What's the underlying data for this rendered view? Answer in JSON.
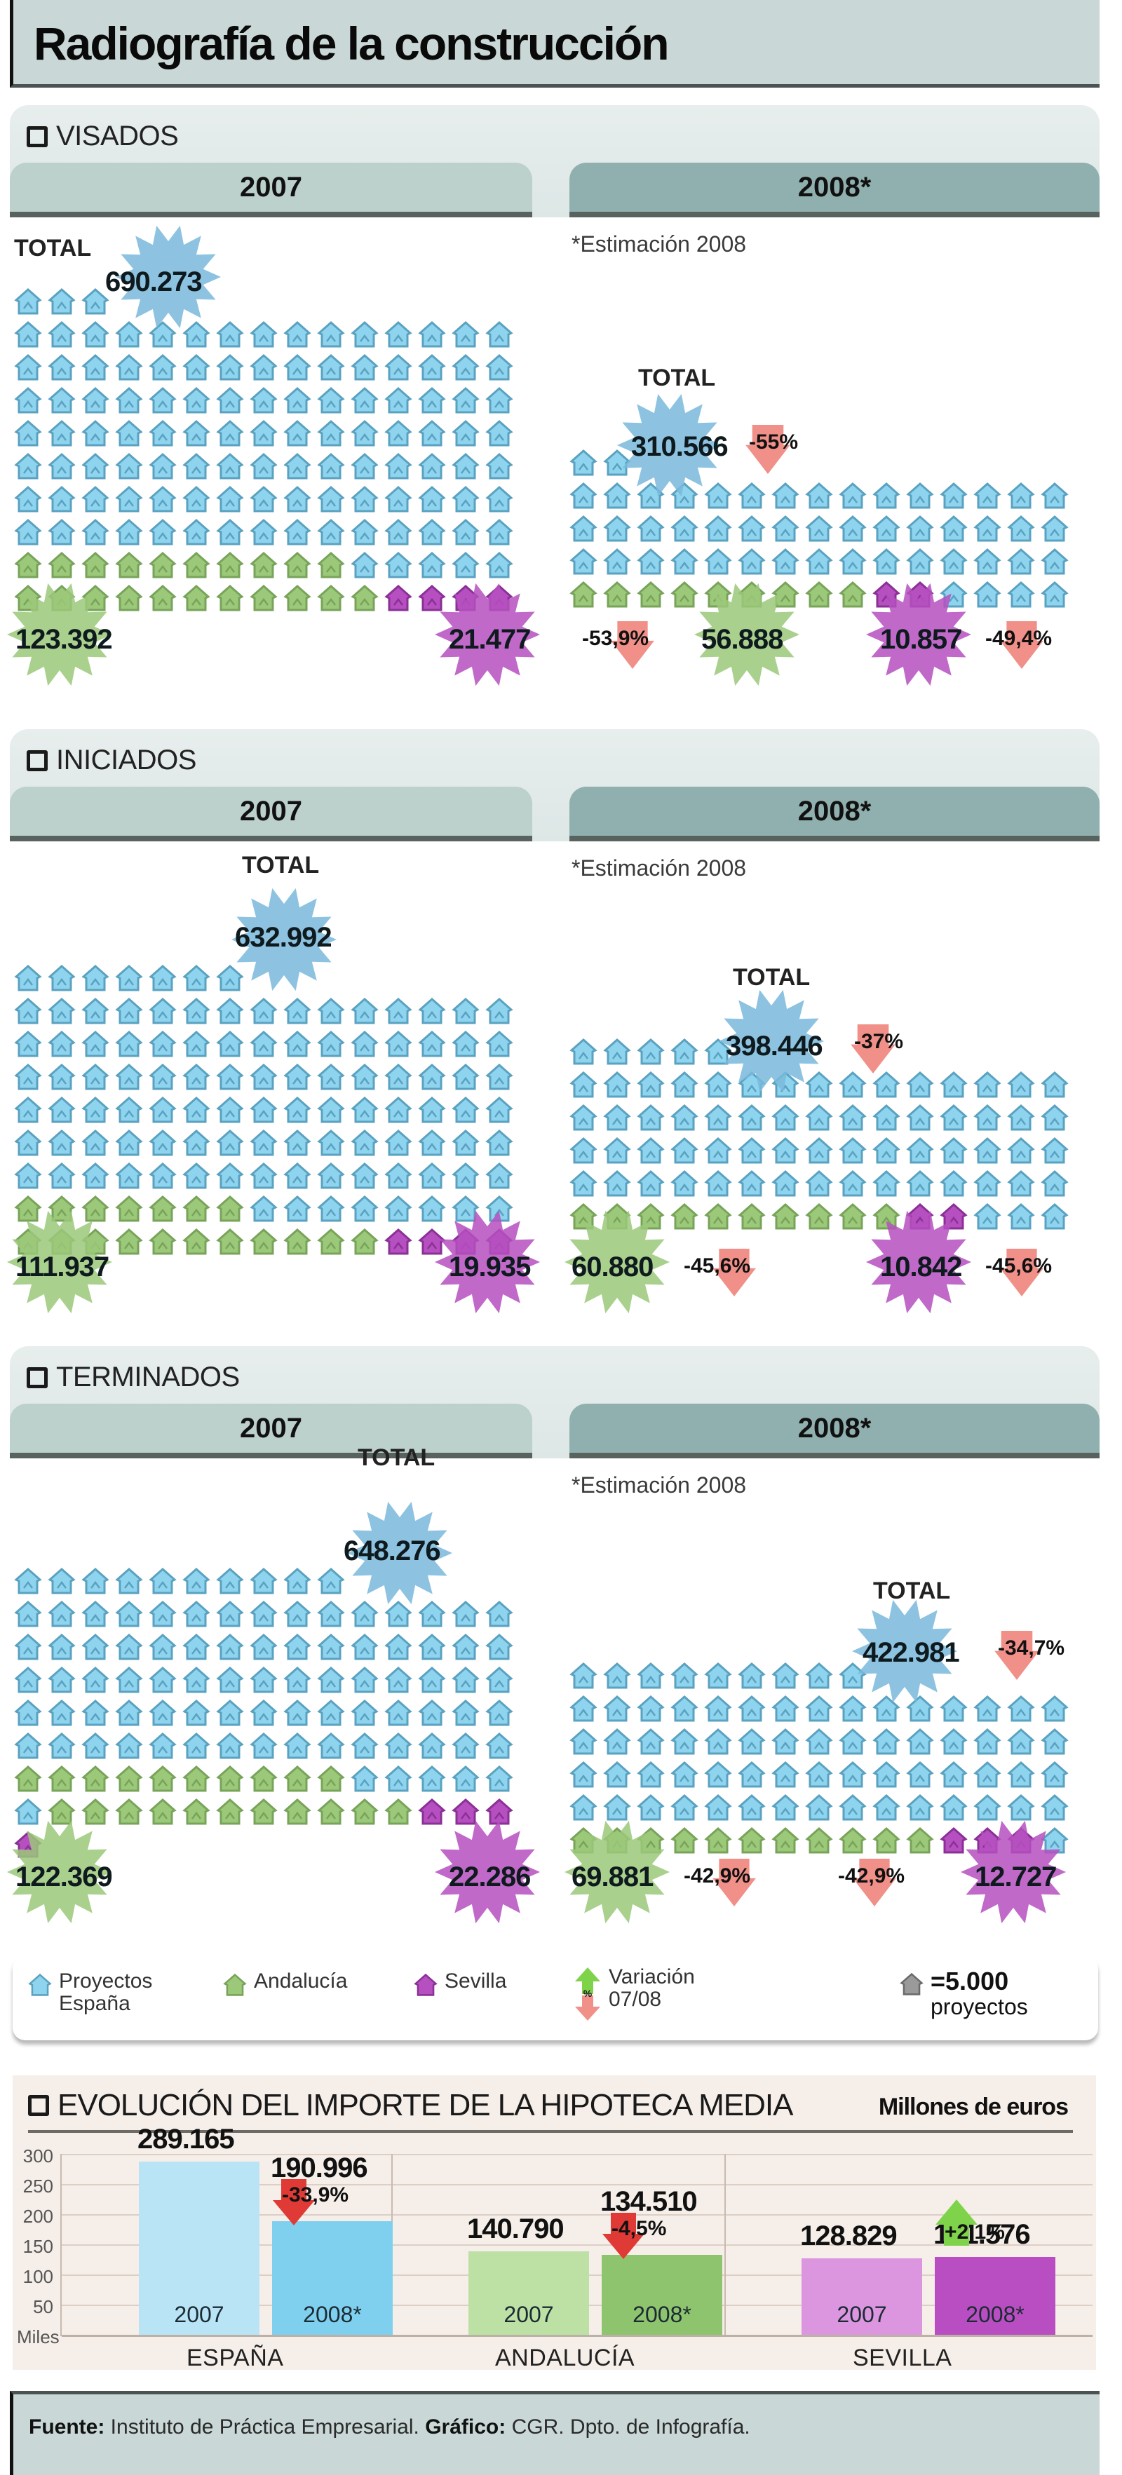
{
  "title": "Radiografía de la construcción",
  "years": {
    "y2007": "2007",
    "y2008": "2008*"
  },
  "estimation_note": "*Estimación 2008",
  "total_label": "TOTAL",
  "unit_note": "=5.000 proyectos",
  "colors": {
    "espana": "#8fd4ef",
    "andalucia": "#9cc87a",
    "sevilla": "#b650c0",
    "variation_down": "#f09088",
    "variation_up": "#7fd34a",
    "header_bg": "#c9d8d6",
    "tab_2007": "#bcd0cc",
    "tab_2008": "#8fb0ae"
  },
  "sections": [
    {
      "id": "visados",
      "label": "VISADOS",
      "y2007": {
        "total": "690.273",
        "andalucia": "123.392",
        "sevilla": "21.477"
      },
      "y2008": {
        "total": "310.566",
        "total_var": "-55%",
        "andalucia": "56.888",
        "andalucia_var": "-53,9%",
        "sevilla": "10.857",
        "sevilla_var": "-49,4%"
      }
    },
    {
      "id": "iniciados",
      "label": "INICIADOS",
      "y2007": {
        "total": "632.992",
        "andalucia": "111.937",
        "sevilla": "19.935"
      },
      "y2008": {
        "total": "398.446",
        "total_var": "-37%",
        "andalucia": "60.880",
        "andalucia_var": "-45,6%",
        "sevilla": "10.842",
        "sevilla_var": "-45,6%"
      }
    },
    {
      "id": "terminados",
      "label": "TERMINADOS",
      "y2007": {
        "total": "648.276",
        "andalucia": "122.369",
        "sevilla": "22.286"
      },
      "y2008": {
        "total": "422.981",
        "total_var": "-34,7%",
        "andalucia": "69.881",
        "andalucia_var": "-42,9%",
        "sevilla": "12.727",
        "sevilla_var": "-42,9%"
      }
    }
  ],
  "legend": {
    "espana": "Proyectos España",
    "andalucia": "Andalucía",
    "sevilla": "Sevilla",
    "variation": "Variación 07/08",
    "variation_icon_text": "%",
    "unit_value": "=5.000",
    "unit_label": "proyectos"
  },
  "hipoteca": {
    "title": "EVOLUCIÓN DEL IMPORTE DE LA HIPOTECA MEDIA",
    "unit": "Millones de euros",
    "axis_unit": "Miles",
    "ticks": [
      "300",
      "250",
      "200",
      "150",
      "100",
      "50"
    ],
    "groups": [
      {
        "region": "ESPAÑA",
        "bars": [
          {
            "year": "2007",
            "value": "289.165"
          },
          {
            "year": "2008*",
            "value": "190.996"
          }
        ],
        "variation": "-33,9%"
      },
      {
        "region": "ANDALUCÍA",
        "bars": [
          {
            "year": "2007",
            "value": "140.790"
          },
          {
            "year": "2008*",
            "value": "134.510"
          }
        ],
        "variation": "-4,5%"
      },
      {
        "region": "SEVILLA",
        "bars": [
          {
            "year": "2007",
            "value": "128.829"
          },
          {
            "year": "2008*",
            "value": "131.576"
          }
        ],
        "variation": "+2,1%"
      }
    ]
  },
  "footer": {
    "source_label": "Fuente:",
    "source": "Instituto de Práctica Empresarial.",
    "graphic_label": "Gráfico:",
    "graphic": "CGR. Dpto. de Infografía."
  },
  "chart_data": [
    {
      "type": "table",
      "title": "VISADOS",
      "note": "Pictogram: 1 icon = 5.000 proyectos",
      "categories": [
        "España",
        "Andalucía",
        "Sevilla"
      ],
      "series": [
        {
          "name": "2007",
          "values": [
            690273,
            123392,
            21477
          ]
        },
        {
          "name": "2008*",
          "values": [
            310566,
            56888,
            10857
          ]
        },
        {
          "name": "Variación 07/08",
          "values": [
            "-55%",
            "-53,9%",
            "-49,4%"
          ]
        }
      ]
    },
    {
      "type": "table",
      "title": "INICIADOS",
      "note": "Pictogram: 1 icon = 5.000 proyectos",
      "categories": [
        "España",
        "Andalucía",
        "Sevilla"
      ],
      "series": [
        {
          "name": "2007",
          "values": [
            632992,
            111937,
            19935
          ]
        },
        {
          "name": "2008*",
          "values": [
            398446,
            60880,
            10842
          ]
        },
        {
          "name": "Variación 07/08",
          "values": [
            "-37%",
            "-45,6%",
            "-45,6%"
          ]
        }
      ]
    },
    {
      "type": "table",
      "title": "TERMINADOS",
      "note": "Pictogram: 1 icon = 5.000 proyectos",
      "categories": [
        "España",
        "Andalucía",
        "Sevilla"
      ],
      "series": [
        {
          "name": "2007",
          "values": [
            648276,
            122369,
            22286
          ]
        },
        {
          "name": "2008*",
          "values": [
            422981,
            69881,
            12727
          ]
        },
        {
          "name": "Variación 07/08",
          "values": [
            "-34,7%",
            "-42,9%",
            "-42,9%"
          ]
        }
      ]
    },
    {
      "type": "bar",
      "title": "EVOLUCIÓN DEL IMPORTE DE LA HIPOTECA MEDIA",
      "subtitle": "Millones de euros",
      "ylabel": "Miles",
      "ylim": [
        0,
        300
      ],
      "yticks": [
        50,
        100,
        150,
        200,
        250,
        300
      ],
      "grid": true,
      "categories": [
        "ESPAÑA",
        "ANDALUCÍA",
        "SEVILLA"
      ],
      "series": [
        {
          "name": "2007",
          "values": [
            289.165,
            140.79,
            128.829
          ]
        },
        {
          "name": "2008*",
          "values": [
            190.996,
            134.51,
            131.576
          ]
        }
      ],
      "annotations": [
        "-33,9%",
        "-4,5%",
        "+2,1%"
      ]
    }
  ]
}
